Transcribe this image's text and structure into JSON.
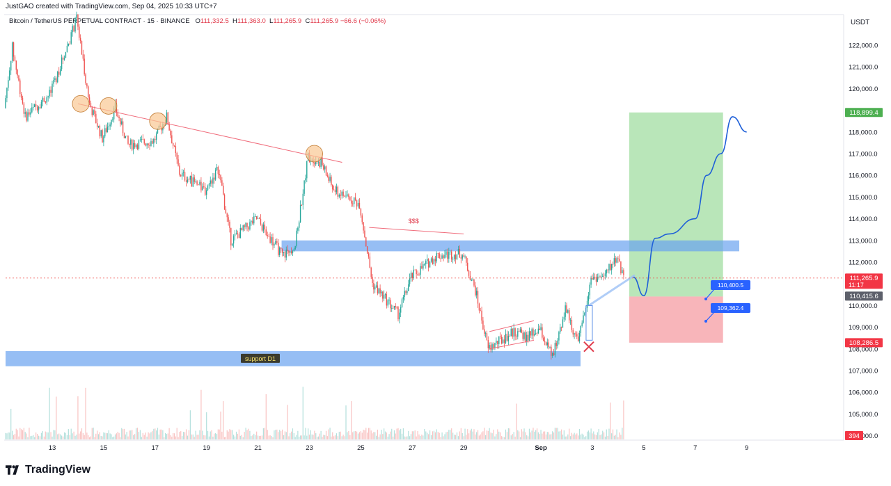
{
  "header": {
    "created_by": "JustGAO created with TradingView.com, Sep 04, 2025 10:33 UTC+7",
    "symbol": "Bitcoin / TetherUS PERPETUAL CONTRACT · 15 · BINANCE",
    "ohlc": [
      {
        "label": "O",
        "value": "111,332.5"
      },
      {
        "label": "H",
        "value": "111,363.0"
      },
      {
        "label": "L",
        "value": "111,265.9"
      },
      {
        "label": "C",
        "value": "111,265.9"
      }
    ],
    "change": "−66.6 (−0.06%)",
    "currency": "USDT"
  },
  "footer": {
    "brand": "TradingView"
  },
  "colors": {
    "up": "#26a69a",
    "down": "#ef5350",
    "zone": "#6aa3f0",
    "profit": "#7fd17f",
    "loss": "#f5959c",
    "projection": "#1e5fd8",
    "trendline": "#f06c7b"
  },
  "chart_data": {
    "type": "candlestick",
    "x_ticks": [
      "13",
      "15",
      "17",
      "19",
      "21",
      "23",
      "25",
      "27",
      "29",
      "Sep",
      "3",
      "5",
      "7",
      "9"
    ],
    "y_ticks": [
      "122,000.0",
      "121,000.0",
      "120,000.0",
      "119,000.0",
      "118,000.0",
      "117,000.0",
      "116,000.0",
      "115,000.0",
      "114,000.0",
      "113,000.0",
      "112,000.0",
      "111,000.0",
      "110,000.0",
      "109,000.0",
      "108,000.0",
      "107,000.0",
      "106,000.0",
      "105,000.0",
      "104,000.0"
    ],
    "ylim": [
      104000,
      123000
    ],
    "price_path": [
      {
        "x": "Aug 11",
        "y": 119100
      },
      {
        "x": "Aug 11",
        "y": 121900
      },
      {
        "x": "Aug 12",
        "y": 118700
      },
      {
        "x": "Aug 13",
        "y": 119800
      },
      {
        "x": "Aug 14",
        "y": 123200
      },
      {
        "x": "Aug 14",
        "y": 119300
      },
      {
        "x": "Aug 15",
        "y": 117700
      },
      {
        "x": "Aug 15",
        "y": 119100
      },
      {
        "x": "Aug 16",
        "y": 117400
      },
      {
        "x": "Aug 17",
        "y": 117600
      },
      {
        "x": "Aug 17",
        "y": 118700
      },
      {
        "x": "Aug 18",
        "y": 116100
      },
      {
        "x": "Aug 19",
        "y": 115300
      },
      {
        "x": "Aug 19",
        "y": 116300
      },
      {
        "x": "Aug 20",
        "y": 113000
      },
      {
        "x": "Aug 21",
        "y": 114000
      },
      {
        "x": "Aug 22",
        "y": 112300
      },
      {
        "x": "Aug 22",
        "y": 112800
      },
      {
        "x": "Aug 23",
        "y": 116900
      },
      {
        "x": "Aug 23",
        "y": 116600
      },
      {
        "x": "Aug 24",
        "y": 115300
      },
      {
        "x": "Aug 25",
        "y": 114700
      },
      {
        "x": "Aug 25",
        "y": 111000
      },
      {
        "x": "Aug 26",
        "y": 110300
      },
      {
        "x": "Aug 26",
        "y": 109600
      },
      {
        "x": "Aug 27",
        "y": 111300
      },
      {
        "x": "Aug 28",
        "y": 112300
      },
      {
        "x": "Aug 29",
        "y": 112400
      },
      {
        "x": "Aug 29",
        "y": 110700
      },
      {
        "x": "Aug 30",
        "y": 108000
      },
      {
        "x": "Aug 31",
        "y": 108800
      },
      {
        "x": "Aug 31",
        "y": 108500
      },
      {
        "x": "Sep 1",
        "y": 108900
      },
      {
        "x": "Sep 1",
        "y": 107600
      },
      {
        "x": "Sep 2",
        "y": 109900
      },
      {
        "x": "Sep 2",
        "y": 108200
      },
      {
        "x": "Sep 3",
        "y": 111300
      },
      {
        "x": "Sep 3",
        "y": 111300
      },
      {
        "x": "Sep 4",
        "y": 112300
      },
      {
        "x": "Sep 4",
        "y": 111266
      }
    ],
    "price_labels": {
      "last": "111,265.9",
      "countdown": "11:17",
      "entry": "110,415.6",
      "target": "118,899.4",
      "stop": "108,286.5",
      "volume": "394"
    },
    "annotations": {
      "support_label": "support D1",
      "liquidity_label": "$$$",
      "callout_1": "110,400.5",
      "callout_2": "109,362.4"
    },
    "zones": {
      "resistance": [
        112500,
        113000
      ],
      "support": [
        107200,
        107900
      ],
      "long_position": {
        "entry": 110415.6,
        "target": 118899.4,
        "stop": 108286.5
      }
    },
    "projection_path": [
      {
        "x": "Sep 4",
        "y": 111300
      },
      {
        "x": "Sep 5",
        "y": 110450
      },
      {
        "x": "Sep 5",
        "y": 113100
      },
      {
        "x": "Sep 6",
        "y": 113300
      },
      {
        "x": "Sep 7",
        "y": 114000
      },
      {
        "x": "Sep 7",
        "y": 116000
      },
      {
        "x": "Sep 8",
        "y": 117000
      },
      {
        "x": "Sep 8",
        "y": 118700
      },
      {
        "x": "Sep 9",
        "y": 118000
      }
    ]
  }
}
